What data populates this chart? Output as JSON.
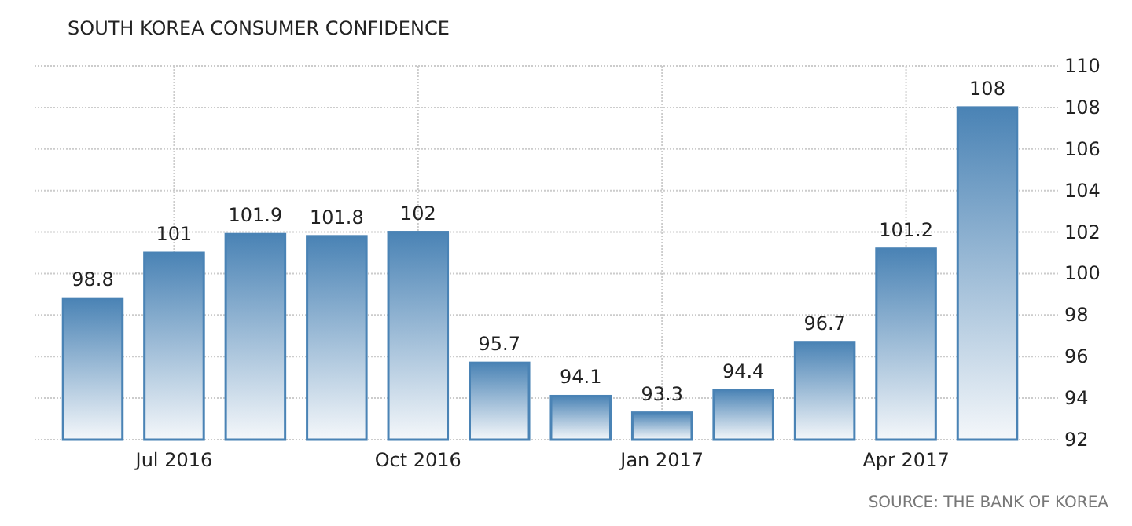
{
  "chart_data": {
    "type": "bar",
    "title": "SOUTH KOREA CONSUMER CONFIDENCE",
    "categories": [
      null,
      "Jul 2016",
      null,
      null,
      "Oct 2016",
      null,
      null,
      "Jan 2017",
      null,
      null,
      "Apr 2017",
      null
    ],
    "values": [
      98.8,
      101,
      101.9,
      101.8,
      102,
      95.7,
      94.1,
      93.3,
      94.4,
      96.7,
      101.2,
      108
    ],
    "color": "#4a83b5",
    "ylim": [
      92,
      110
    ],
    "yticks": [
      92,
      94,
      96,
      98,
      100,
      102,
      104,
      106,
      108,
      110
    ],
    "grid": true,
    "data_labels": true,
    "annotations": [
      "SOURCE: THE BANK OF KOREA"
    ]
  }
}
